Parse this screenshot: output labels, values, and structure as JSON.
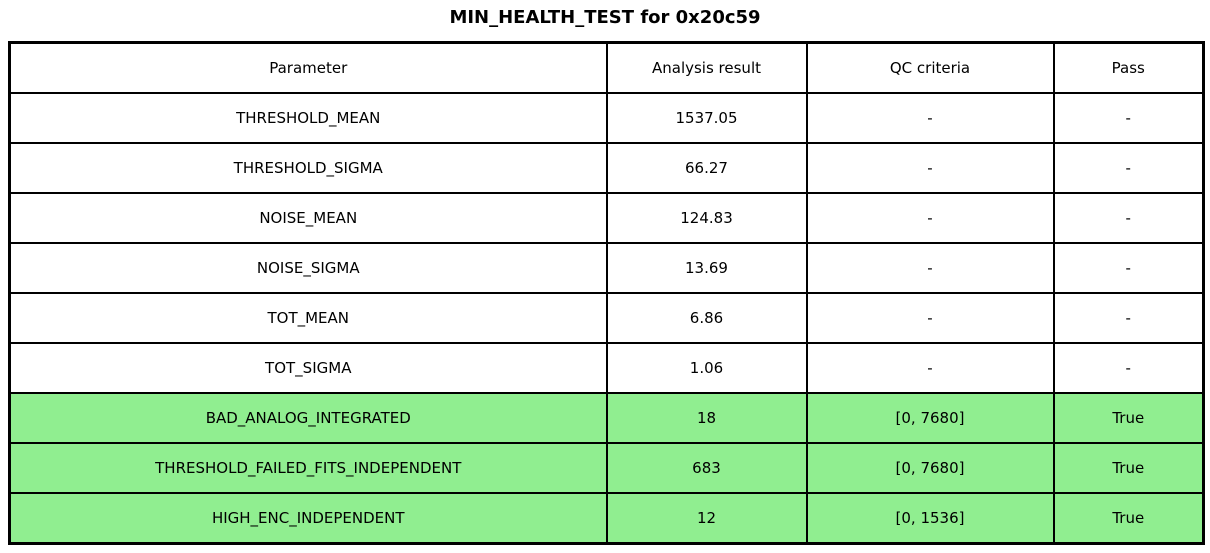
{
  "title": "MIN_HEALTH_TEST for 0x20c59",
  "colors": {
    "background": "#ffffff",
    "border": "#000000",
    "text": "#000000",
    "pass_highlight": "#90ee90"
  },
  "chart_data": {
    "type": "table",
    "title": "MIN_HEALTH_TEST for 0x20c59",
    "columns": [
      "Parameter",
      "Analysis result",
      "QC criteria",
      "Pass"
    ],
    "rows": [
      {
        "cells": [
          "THRESHOLD_MEAN",
          "1537.05",
          "-",
          "-"
        ],
        "highlight": false
      },
      {
        "cells": [
          "THRESHOLD_SIGMA",
          "66.27",
          "-",
          "-"
        ],
        "highlight": false
      },
      {
        "cells": [
          "NOISE_MEAN",
          "124.83",
          "-",
          "-"
        ],
        "highlight": false
      },
      {
        "cells": [
          "NOISE_SIGMA",
          "13.69",
          "-",
          "-"
        ],
        "highlight": false
      },
      {
        "cells": [
          "TOT_MEAN",
          "6.86",
          "-",
          "-"
        ],
        "highlight": false
      },
      {
        "cells": [
          "TOT_SIGMA",
          "1.06",
          "-",
          "-"
        ],
        "highlight": false
      },
      {
        "cells": [
          "BAD_ANALOG_INTEGRATED",
          "18",
          "[0, 7680]",
          "True"
        ],
        "highlight": true
      },
      {
        "cells": [
          "THRESHOLD_FAILED_FITS_INDEPENDENT",
          "683",
          "[0, 7680]",
          "True"
        ],
        "highlight": true
      },
      {
        "cells": [
          "HIGH_ENC_INDEPENDENT",
          "12",
          "[0, 1536]",
          "True"
        ],
        "highlight": true
      }
    ],
    "highlighted_rows": [
      6,
      7,
      8
    ],
    "highlight_color": "#90ee90",
    "grid": true,
    "legend": false
  }
}
